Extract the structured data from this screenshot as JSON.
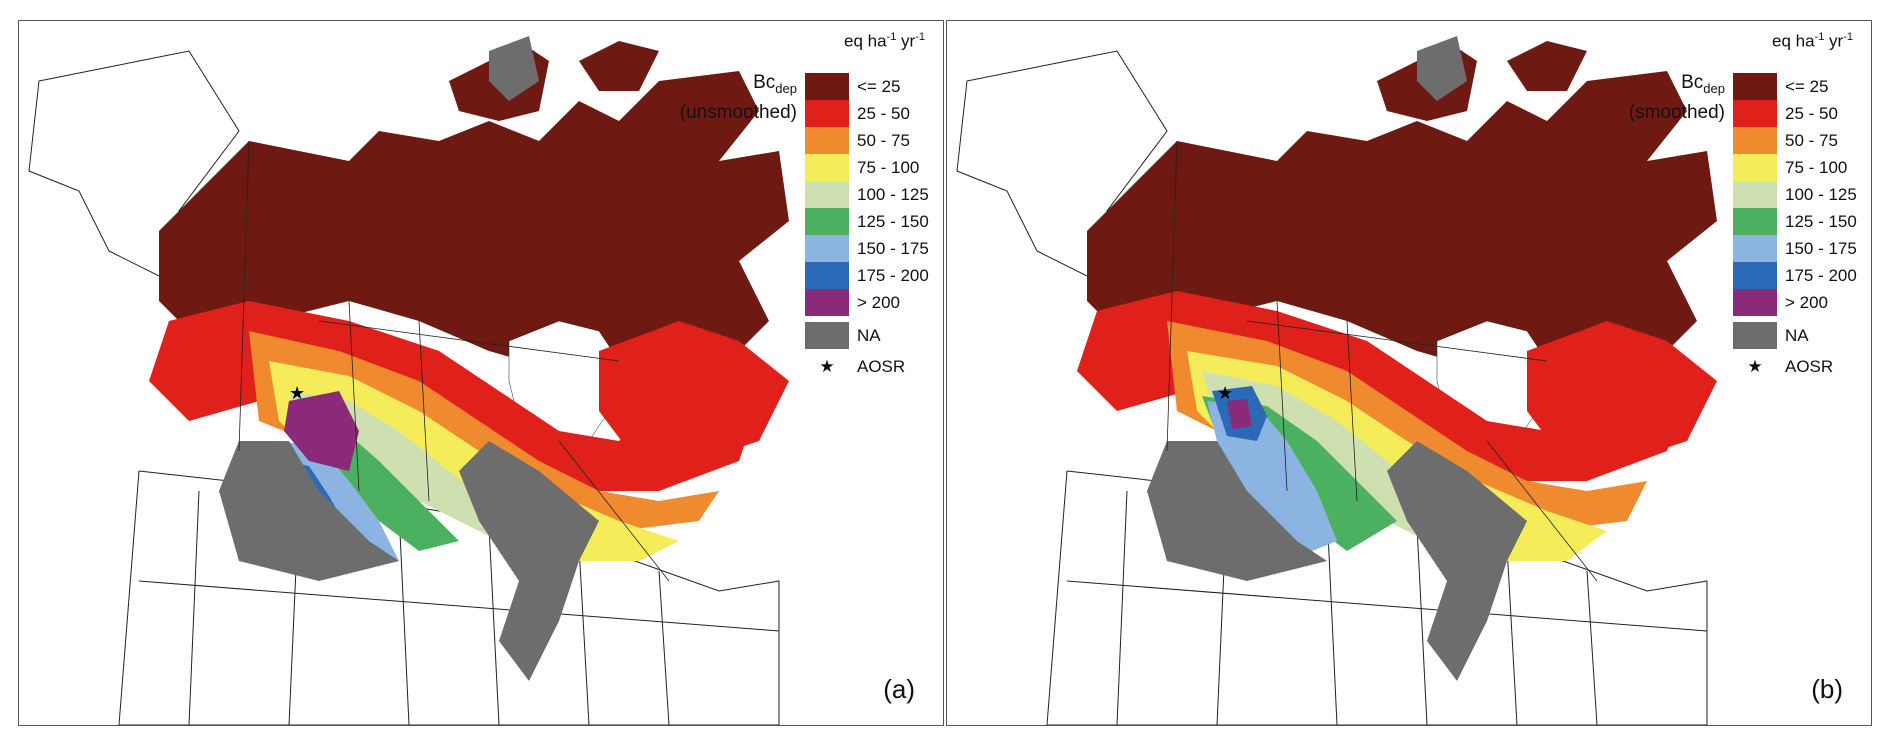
{
  "panels": [
    {
      "id": "a",
      "legend_title_main": "Bc",
      "legend_title_sub": "dep",
      "legend_title_qualifier": "(unsmoothed)",
      "panel_label": "(a)"
    },
    {
      "id": "b",
      "legend_title_main": "Bc",
      "legend_title_sub": "dep",
      "legend_title_qualifier": "(smoothed)",
      "panel_label": "(b)"
    }
  ],
  "legend": {
    "units_base": "eq ha",
    "units_exp1": "-1",
    "units_mid": " yr",
    "units_exp2": "-1",
    "classes": [
      {
        "label": "<= 25",
        "color": "#6e1a12"
      },
      {
        "label": "25 - 50",
        "color": "#e0201a"
      },
      {
        "label": "50 - 75",
        "color": "#f08a2e"
      },
      {
        "label": "75 - 100",
        "color": "#f5ec5a"
      },
      {
        "label": "100 - 125",
        "color": "#cfe0b0"
      },
      {
        "label": "125 - 150",
        "color": "#4cb061"
      },
      {
        "label": "150 - 175",
        "color": "#8cb4e2"
      },
      {
        "label": "175 - 200",
        "color": "#2a6ab6"
      },
      {
        "label": "> 200",
        "color": "#8a2a78"
      }
    ],
    "na": {
      "label": "NA",
      "color": "#6d6d6d"
    },
    "marker": {
      "symbol": "★",
      "label": "AOSR"
    }
  }
}
